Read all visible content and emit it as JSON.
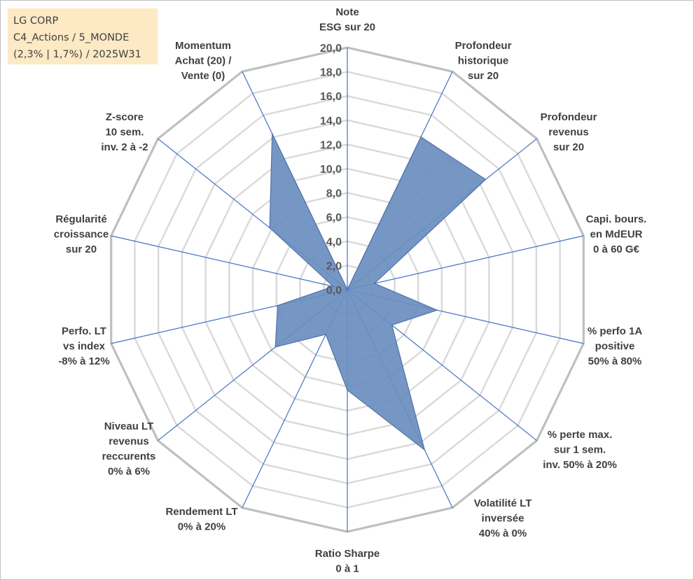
{
  "info_box": {
    "line1": "LG CORP",
    "line2": "C4_Actions / 5_MONDE",
    "line3": "(2,3% | 1,7%) / 2025W31"
  },
  "chart_data": {
    "type": "radar",
    "r_range": [
      0,
      20
    ],
    "r_ticks": [
      "0,0",
      "2,0",
      "4,0",
      "6,0",
      "8,0",
      "10,0",
      "12,0",
      "14,0",
      "16,0",
      "18,0",
      "20,0"
    ],
    "axes": [
      {
        "label": [
          "Note",
          "ESG sur 20"
        ],
        "value": 0.0
      },
      {
        "label": [
          "Profondeur",
          "historique",
          "sur 20"
        ],
        "value": 14.0
      },
      {
        "label": [
          "Profondeur",
          "revenus",
          "sur 20"
        ],
        "value": 14.6
      },
      {
        "label": [
          "Capi. bours.",
          "en MdEUR",
          "0 à 60 G€"
        ],
        "value": 2.3
      },
      {
        "label": [
          "% perfo 1A",
          "positive",
          "50% à 80%"
        ],
        "value": 7.6
      },
      {
        "label": [
          "% perte max.",
          "sur 1 sem.",
          "inv. 50% à 20%"
        ],
        "value": 4.7
      },
      {
        "label": [
          "Volatilité LT",
          "inversée",
          "40% à 0%"
        ],
        "value": 14.7
      },
      {
        "label": [
          "Ratio Sharpe",
          "0 à 1"
        ],
        "value": 8.3
      },
      {
        "label": [
          "Rendement LT",
          "0% à 20%"
        ],
        "value": 4.1
      },
      {
        "label": [
          "Niveau LT",
          "revenus",
          "reccurents",
          "0% à 6%"
        ],
        "value": 7.6
      },
      {
        "label": [
          "Perfo. LT",
          "vs index",
          "-8% à 12%"
        ],
        "value": 5.9
      },
      {
        "label": [
          "Régularité",
          "croissance",
          "sur 20"
        ],
        "value": 1.2
      },
      {
        "label": [
          "Z-score",
          "10 sem.",
          "inv. 2 à -2"
        ],
        "value": 8.2
      },
      {
        "label": [
          "Momentum",
          "Achat (20) /",
          "Vente (0)"
        ],
        "value": 14.3
      }
    ],
    "colors": {
      "fill": "#6a8ebf",
      "fill_stroke": "#4f72a8",
      "spoke": "#4472c4",
      "grid": "#d9d9d9",
      "grid_outer": "#bfbfbf"
    },
    "grid": true,
    "legend": "none"
  }
}
